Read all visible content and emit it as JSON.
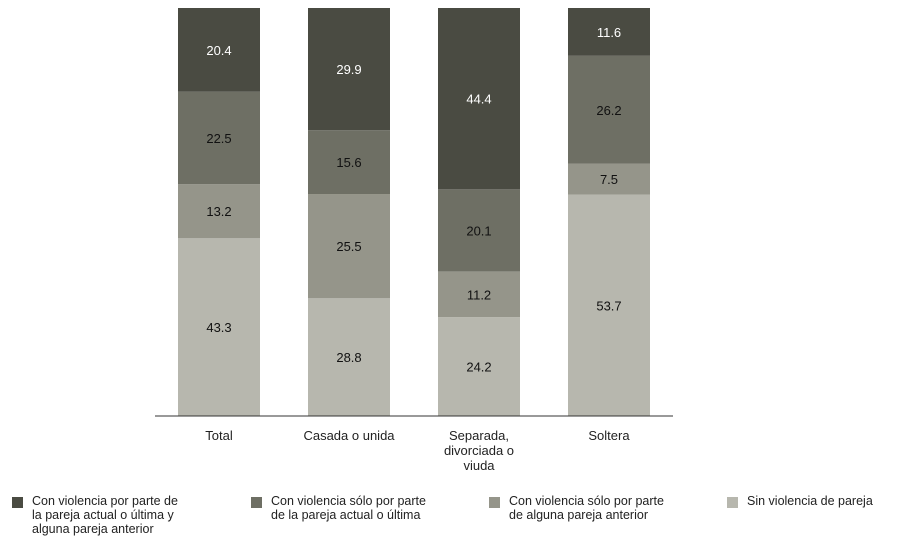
{
  "chart_data": {
    "type": "bar",
    "stacked": true,
    "categories": [
      "Total",
      "Casada o unida",
      "Separada,\ndivorciada o\nviuda",
      "Soltera"
    ],
    "series": [
      {
        "name": "Con violencia por parte de\nla pareja actual o última y\nalguna pareja anterior",
        "color": "#4a4b42",
        "text_color": "#ffffff",
        "values": [
          20.4,
          29.9,
          44.4,
          11.6
        ]
      },
      {
        "name": "Con violencia sólo por parte\nde la pareja actual o última",
        "color": "#6e6f64",
        "text_color": "#111111",
        "values": [
          22.5,
          15.6,
          20.1,
          26.2
        ]
      },
      {
        "name": "Con violencia sólo por parte\nde alguna pareja anterior",
        "color": "#95958a",
        "text_color": "#111111",
        "values": [
          13.2,
          25.5,
          11.2,
          7.5
        ]
      },
      {
        "name": "Sin violencia de pareja",
        "color": "#b7b7ae",
        "text_color": "#111111",
        "values": [
          43.3,
          28.8,
          24.2,
          53.7
        ]
      }
    ],
    "ylim": [
      0,
      100
    ],
    "grid": false,
    "legend_position": "bottom"
  }
}
